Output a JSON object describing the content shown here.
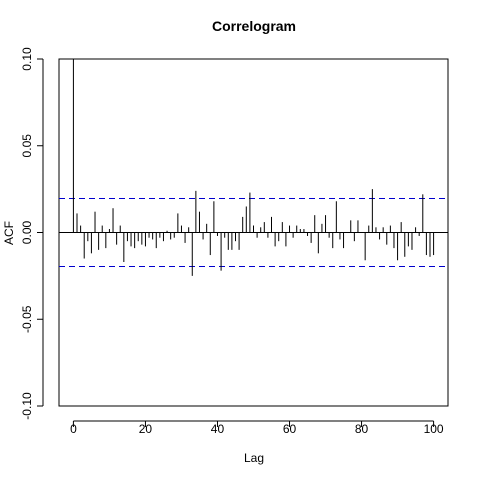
{
  "chart_data": {
    "type": "bar",
    "title": "Correlogram",
    "xlabel": "Lag",
    "ylabel": "ACF",
    "xlim": [
      -4,
      104
    ],
    "ylim": [
      -0.1,
      0.1
    ],
    "x_ticks": [
      0,
      20,
      40,
      60,
      80,
      100
    ],
    "x_tick_labels": [
      "0",
      "20",
      "40",
      "60",
      "80",
      "100"
    ],
    "y_ticks": [
      -0.1,
      -0.05,
      0.0,
      0.05,
      0.1
    ],
    "y_tick_labels": [
      "-0.10",
      "-0.05",
      "0.00",
      "0.05",
      "0.10"
    ],
    "confidence_bounds": [
      0.0196,
      -0.0196
    ],
    "bound_color": "#0000cd",
    "lags": [
      0,
      1,
      2,
      3,
      4,
      5,
      6,
      7,
      8,
      9,
      10,
      11,
      12,
      13,
      14,
      15,
      16,
      17,
      18,
      19,
      20,
      21,
      22,
      23,
      24,
      25,
      26,
      27,
      28,
      29,
      30,
      31,
      32,
      33,
      34,
      35,
      36,
      37,
      38,
      39,
      40,
      41,
      42,
      43,
      44,
      45,
      46,
      47,
      48,
      49,
      50,
      51,
      52,
      53,
      54,
      55,
      56,
      57,
      58,
      59,
      60,
      61,
      62,
      63,
      64,
      65,
      66,
      67,
      68,
      69,
      70,
      71,
      72,
      73,
      74,
      75,
      76,
      77,
      78,
      79,
      80,
      81,
      82,
      83,
      84,
      85,
      86,
      87,
      88,
      89,
      90,
      91,
      92,
      93,
      94,
      95,
      96,
      97,
      98,
      99,
      100
    ],
    "values": [
      0.107,
      0.011,
      0.004,
      -0.015,
      -0.005,
      -0.012,
      0.012,
      -0.01,
      0.004,
      -0.009,
      0.002,
      0.014,
      -0.007,
      0.004,
      -0.017,
      -0.005,
      -0.008,
      -0.009,
      -0.005,
      -0.007,
      -0.008,
      -0.003,
      -0.004,
      -0.009,
      -0.003,
      -0.005,
      0.001,
      -0.004,
      -0.003,
      0.011,
      0.004,
      -0.006,
      0.003,
      -0.025,
      0.024,
      0.012,
      -0.004,
      0.005,
      -0.013,
      0.018,
      -0.002,
      -0.022,
      -0.003,
      -0.01,
      -0.01,
      -0.005,
      -0.01,
      0.009,
      0.015,
      0.023,
      0.004,
      -0.003,
      0.003,
      0.006,
      -0.003,
      0.009,
      -0.008,
      -0.005,
      0.006,
      -0.008,
      0.004,
      -0.003,
      0.004,
      0.002,
      0.002,
      -0.002,
      -0.006,
      0.01,
      -0.012,
      0.005,
      0.01,
      -0.003,
      -0.009,
      0.018,
      -0.004,
      -0.009,
      0.0,
      0.007,
      -0.005,
      0.007,
      0.0,
      -0.016,
      0.004,
      0.025,
      0.003,
      -0.004,
      0.003,
      -0.007,
      0.004,
      -0.009,
      -0.016,
      0.006,
      -0.014,
      -0.008,
      -0.01,
      0.003,
      -0.002,
      0.022,
      -0.013,
      -0.014,
      -0.013
    ]
  }
}
